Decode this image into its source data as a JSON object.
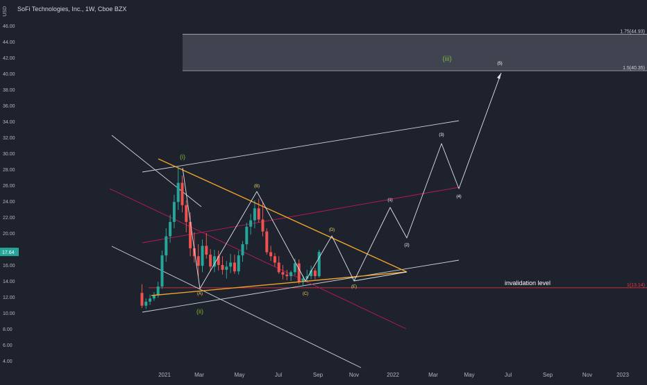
{
  "header": {
    "currency": "USD",
    "title": "SoFi Technologies, Inc., 1W, Cboe BZX"
  },
  "colors": {
    "background": "#1e222d",
    "axis_text": "#b2b5be",
    "up": "#26a69a",
    "down": "#ef5350",
    "triangle": "#f0a32a",
    "channel_white": "#d1d4dc",
    "channel_red": "#c2185b",
    "label_yellow": "#f5d76e",
    "label_green": "#7cb342",
    "invalidation": "#f23645",
    "price_badge": "#26a69a"
  },
  "chart_data": {
    "type": "candlestick",
    "y_axis": {
      "ticks": [
        "4.00",
        "6.00",
        "8.00",
        "10.00",
        "12.00",
        "14.00",
        "16.00",
        "18.00",
        "20.00",
        "22.00",
        "24.00",
        "26.00",
        "28.00",
        "30.00",
        "32.00",
        "34.00",
        "36.00",
        "38.00",
        "40.00",
        "42.00",
        "44.00",
        "46.00"
      ],
      "ylim": [
        3.0,
        47.5
      ]
    },
    "x_axis": {
      "ticks": [
        "2021",
        "Mar",
        "May",
        "Jul",
        "Sep",
        "Nov",
        "2022",
        "Mar",
        "May",
        "Jul",
        "Sep",
        "Nov",
        "2023"
      ]
    },
    "last_price": "17.64",
    "candles": [
      {
        "o": 12.5,
        "h": 13.6,
        "l": 10.6,
        "c": 10.9
      },
      {
        "o": 10.9,
        "h": 11.8,
        "l": 10.5,
        "c": 11.4
      },
      {
        "o": 11.4,
        "h": 12.3,
        "l": 11.0,
        "c": 11.8
      },
      {
        "o": 11.8,
        "h": 12.6,
        "l": 11.5,
        "c": 12.2
      },
      {
        "o": 12.2,
        "h": 13.9,
        "l": 11.9,
        "c": 13.3
      },
      {
        "o": 13.3,
        "h": 17.8,
        "l": 13.0,
        "c": 17.2
      },
      {
        "o": 17.2,
        "h": 20.6,
        "l": 16.4,
        "c": 19.6
      },
      {
        "o": 19.6,
        "h": 22.3,
        "l": 18.8,
        "c": 21.4
      },
      {
        "o": 21.4,
        "h": 24.8,
        "l": 20.6,
        "c": 23.9
      },
      {
        "o": 23.9,
        "h": 28.3,
        "l": 22.9,
        "c": 26.3
      },
      {
        "o": 26.3,
        "h": 27.2,
        "l": 22.6,
        "c": 23.5
      },
      {
        "o": 23.5,
        "h": 24.1,
        "l": 20.1,
        "c": 21.4
      },
      {
        "o": 21.4,
        "h": 22.6,
        "l": 17.1,
        "c": 18.1
      },
      {
        "o": 18.1,
        "h": 20.1,
        "l": 16.3,
        "c": 17.1
      },
      {
        "o": 17.1,
        "h": 18.6,
        "l": 14.6,
        "c": 15.9
      },
      {
        "o": 15.9,
        "h": 19.2,
        "l": 15.1,
        "c": 18.4
      },
      {
        "o": 18.4,
        "h": 20.0,
        "l": 16.8,
        "c": 17.3
      },
      {
        "o": 17.3,
        "h": 18.0,
        "l": 15.2,
        "c": 15.8
      },
      {
        "o": 15.8,
        "h": 17.9,
        "l": 15.1,
        "c": 17.1
      },
      {
        "o": 17.1,
        "h": 17.8,
        "l": 15.3,
        "c": 16.0
      },
      {
        "o": 16.0,
        "h": 17.1,
        "l": 14.8,
        "c": 15.4
      },
      {
        "o": 15.4,
        "h": 16.5,
        "l": 14.3,
        "c": 15.8
      },
      {
        "o": 15.8,
        "h": 17.4,
        "l": 15.0,
        "c": 16.3
      },
      {
        "o": 16.3,
        "h": 17.3,
        "l": 14.9,
        "c": 15.2
      },
      {
        "o": 15.2,
        "h": 17.8,
        "l": 14.8,
        "c": 17.2
      },
      {
        "o": 17.2,
        "h": 19.0,
        "l": 16.4,
        "c": 18.6
      },
      {
        "o": 18.6,
        "h": 21.3,
        "l": 17.9,
        "c": 20.8
      },
      {
        "o": 20.8,
        "h": 22.4,
        "l": 19.8,
        "c": 21.6
      },
      {
        "o": 21.6,
        "h": 24.1,
        "l": 20.6,
        "c": 23.1
      },
      {
        "o": 23.1,
        "h": 24.3,
        "l": 21.3,
        "c": 21.7
      },
      {
        "o": 21.7,
        "h": 23.9,
        "l": 19.6,
        "c": 20.2
      },
      {
        "o": 20.2,
        "h": 20.6,
        "l": 17.3,
        "c": 17.6
      },
      {
        "o": 17.6,
        "h": 18.4,
        "l": 16.5,
        "c": 17.1
      },
      {
        "o": 17.1,
        "h": 17.5,
        "l": 15.8,
        "c": 16.3
      },
      {
        "o": 16.3,
        "h": 17.1,
        "l": 14.9,
        "c": 15.1
      },
      {
        "o": 15.1,
        "h": 16.0,
        "l": 14.2,
        "c": 14.8
      },
      {
        "o": 14.8,
        "h": 15.4,
        "l": 14.1,
        "c": 14.6
      },
      {
        "o": 14.6,
        "h": 15.3,
        "l": 14.0,
        "c": 15.1
      },
      {
        "o": 15.1,
        "h": 16.8,
        "l": 14.7,
        "c": 16.2
      },
      {
        "o": 16.2,
        "h": 16.7,
        "l": 13.6,
        "c": 13.9
      },
      {
        "o": 13.9,
        "h": 14.7,
        "l": 13.3,
        "c": 14.3
      },
      {
        "o": 14.3,
        "h": 15.4,
        "l": 13.8,
        "c": 14.6
      },
      {
        "o": 14.6,
        "h": 15.9,
        "l": 14.2,
        "c": 15.3
      },
      {
        "o": 15.3,
        "h": 15.6,
        "l": 14.2,
        "c": 14.6
      },
      {
        "o": 14.6,
        "h": 17.9,
        "l": 14.4,
        "c": 17.64
      }
    ],
    "fib_zone": {
      "low": 40.35,
      "high": 44.93
    },
    "annotations": {
      "fib_high": "1.75(44.93)",
      "fib_low": "1.5(40.35)",
      "invalidation_text": "invalidation level",
      "invalidation_value": "1(13.14)",
      "invalidation_price": 13.14,
      "wave_i": "(i)",
      "wave_ii": "(ii)",
      "wave_iii": "(iii)",
      "wave_A": "(A)",
      "wave_B": "(B)",
      "wave_C": "(C)",
      "wave_D": "(D)",
      "wave_E": "(E)",
      "wave_1": "(1)",
      "wave_2": "(2)",
      "wave_3": "(3)",
      "wave_4": "(4)",
      "wave_5": "(5)"
    }
  }
}
